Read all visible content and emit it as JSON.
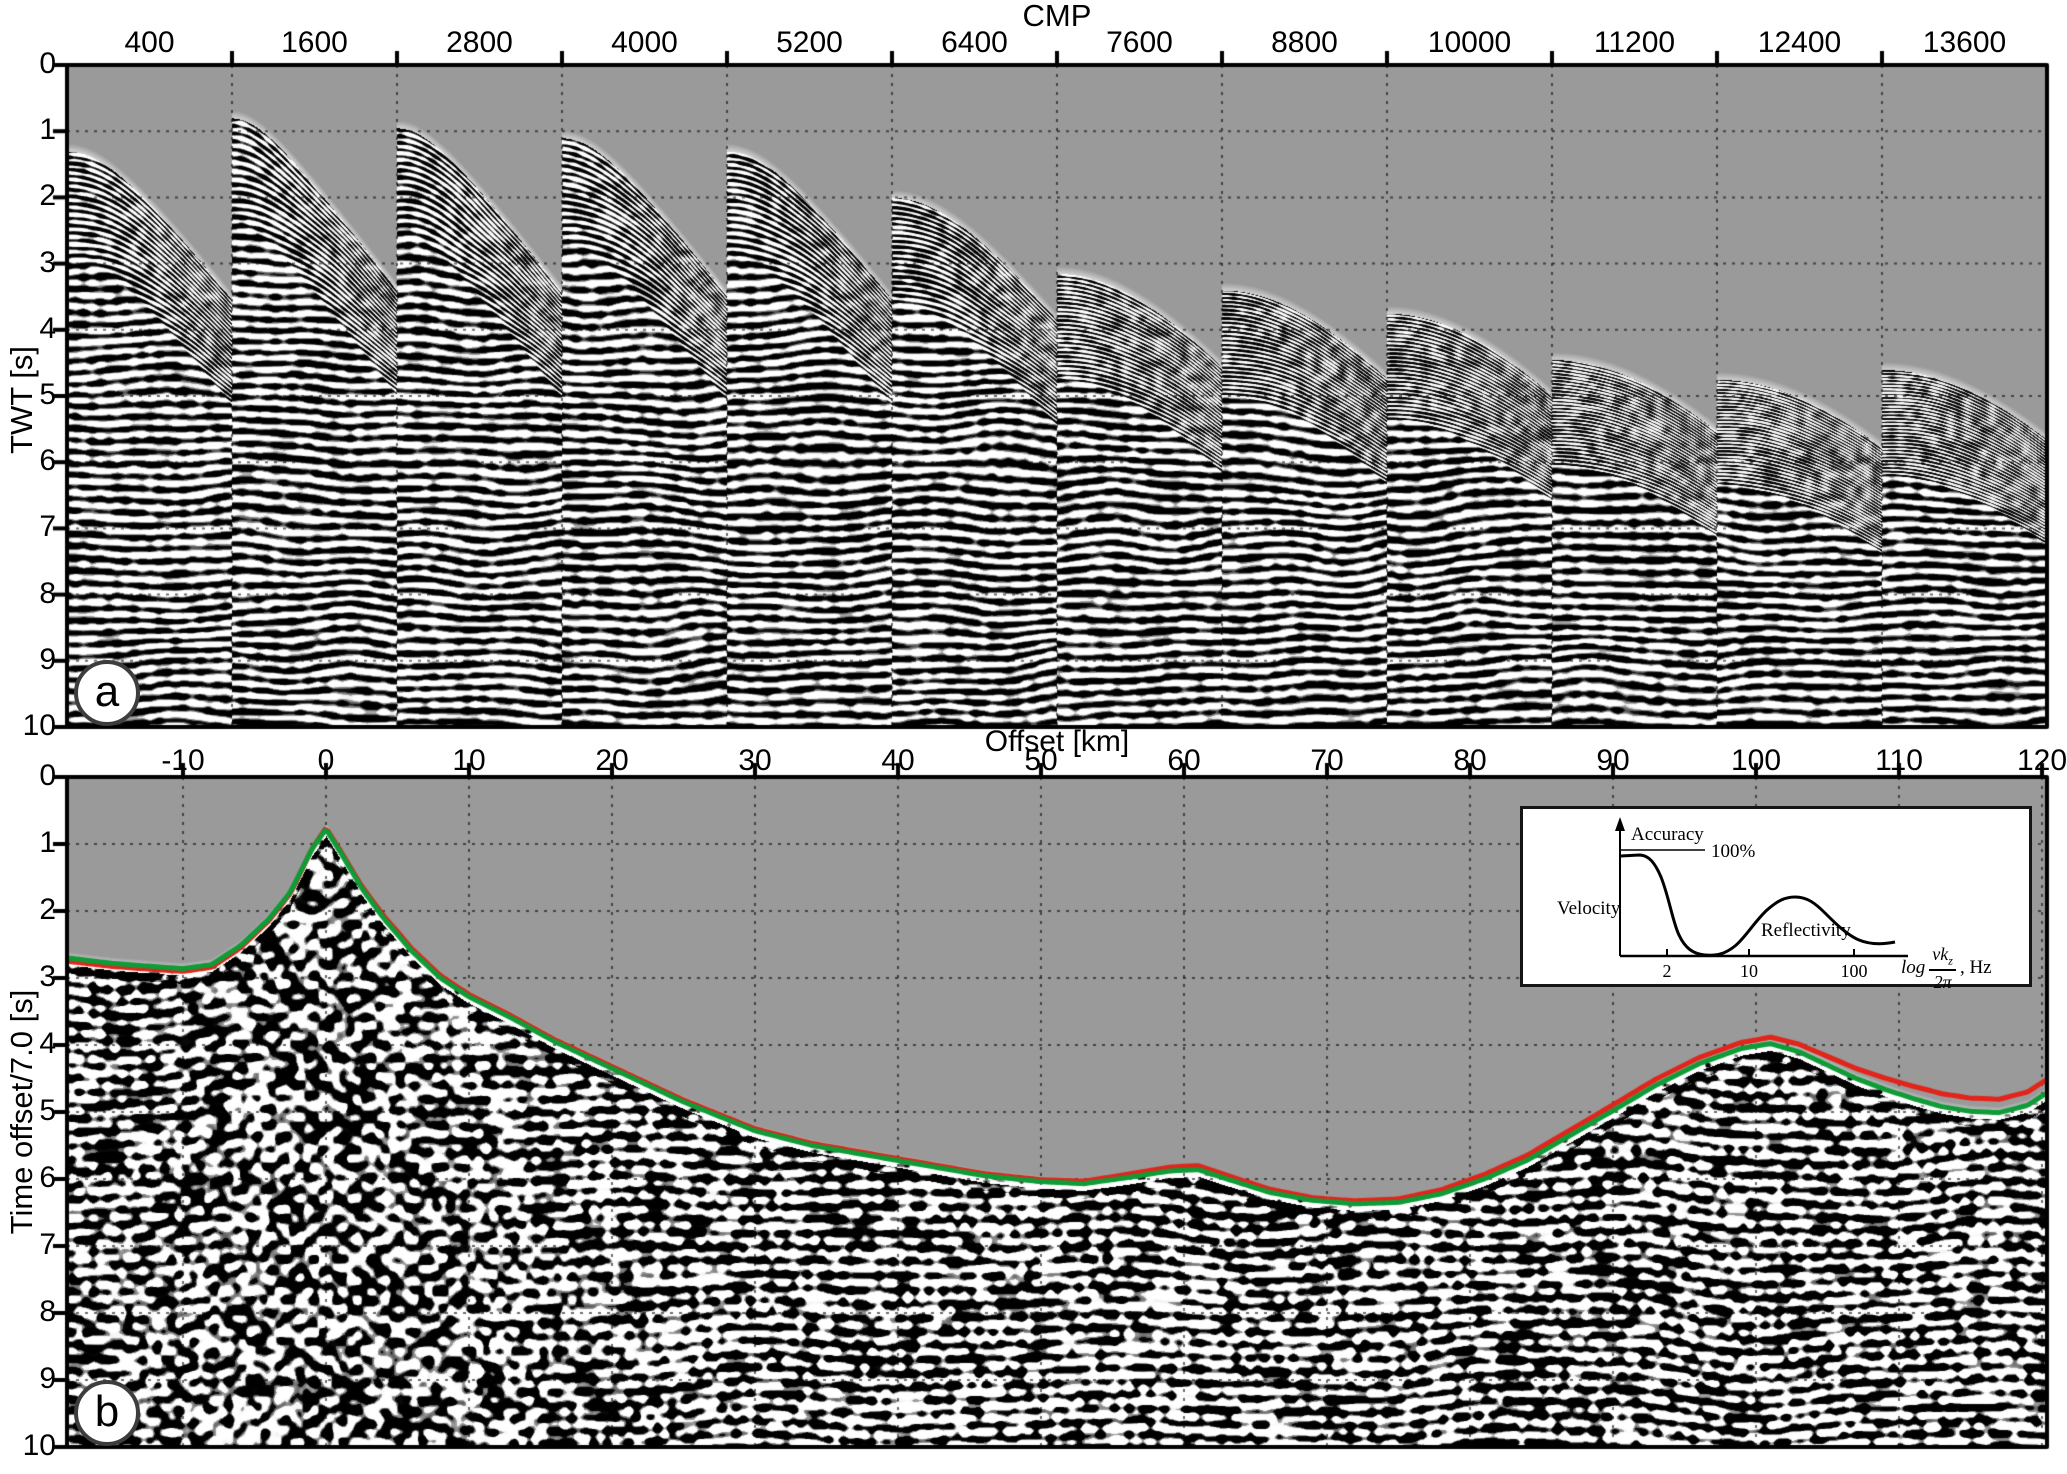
{
  "colors": {
    "no_data_gray": "#9a9a9a",
    "horizon_red": "#e1251b",
    "horizon_green": "#0f9b37",
    "ink": "#000000"
  },
  "chart_data": [
    {
      "id": "a",
      "type": "heatmap",
      "subtype": "seismic-cmp-supergathers",
      "panel_tag": "a",
      "x_axis": {
        "title": "CMP",
        "ticks": [
          400,
          1600,
          2800,
          4000,
          5200,
          6400,
          7600,
          8800,
          10000,
          11200,
          12400,
          13600
        ],
        "n_panels": 12
      },
      "y_axis": {
        "title": "TWT [s]",
        "ticks": [
          0,
          1,
          2,
          3,
          4,
          5,
          6,
          7,
          8,
          9,
          10
        ],
        "range": [
          0,
          10
        ]
      },
      "grid": "dotted 1 s horizontal, dotted vertical at gather boundaries",
      "gather_onset_times_s": [
        1.3,
        0.8,
        0.95,
        1.1,
        1.3,
        2.0,
        3.15,
        3.4,
        3.75,
        4.45,
        4.75,
        4.6
      ],
      "moveout_coeff": 3.3
    },
    {
      "id": "b",
      "type": "heatmap",
      "subtype": "migrated-seismic-section",
      "panel_tag": "b",
      "x_axis": {
        "title": "Offset [km]",
        "ticks": [
          -10,
          0,
          10,
          20,
          30,
          40,
          50,
          60,
          70,
          80,
          90,
          100,
          110,
          120
        ],
        "range": [
          -18.1,
          120.3
        ]
      },
      "y_axis": {
        "title": "Time offset/7.0  [s]",
        "ticks": [
          0,
          1,
          2,
          3,
          4,
          5,
          6,
          7,
          8,
          9,
          10
        ],
        "range": [
          0,
          10
        ]
      },
      "grid": "dotted 1 s horizontal, dotted 10 km vertical",
      "horizons": [
        {
          "name": "red-pick",
          "color": "#e1251b"
        },
        {
          "name": "green-pick",
          "color": "#0f9b37"
        }
      ],
      "seafloor_green_pick_km_s": [
        [
          -18.1,
          2.7
        ],
        [
          -15,
          2.78
        ],
        [
          -12,
          2.83
        ],
        [
          -10,
          2.86
        ],
        [
          -8,
          2.8
        ],
        [
          -6,
          2.52
        ],
        [
          -4,
          2.12
        ],
        [
          -2.5,
          1.72
        ],
        [
          -1,
          1.08
        ],
        [
          0,
          0.78
        ],
        [
          1,
          1.12
        ],
        [
          2.5,
          1.66
        ],
        [
          4,
          2.1
        ],
        [
          6,
          2.6
        ],
        [
          8,
          3.0
        ],
        [
          10,
          3.28
        ],
        [
          13,
          3.6
        ],
        [
          16,
          3.95
        ],
        [
          20,
          4.35
        ],
        [
          25,
          4.85
        ],
        [
          30,
          5.28
        ],
        [
          34,
          5.5
        ],
        [
          38,
          5.65
        ],
        [
          42,
          5.8
        ],
        [
          46,
          5.95
        ],
        [
          50,
          6.04
        ],
        [
          53,
          6.07
        ],
        [
          56,
          5.98
        ],
        [
          59,
          5.88
        ],
        [
          61,
          5.86
        ],
        [
          63,
          6.0
        ],
        [
          66,
          6.2
        ],
        [
          69,
          6.32
        ],
        [
          72,
          6.37
        ],
        [
          75,
          6.35
        ],
        [
          78,
          6.22
        ],
        [
          81,
          6.0
        ],
        [
          84,
          5.72
        ],
        [
          87,
          5.35
        ],
        [
          90,
          4.98
        ],
        [
          93,
          4.6
        ],
        [
          96,
          4.28
        ],
        [
          99,
          4.05
        ],
        [
          101,
          3.98
        ],
        [
          103,
          4.1
        ],
        [
          105,
          4.3
        ],
        [
          107,
          4.5
        ],
        [
          109,
          4.66
        ],
        [
          111,
          4.8
        ],
        [
          113,
          4.92
        ],
        [
          115,
          4.99
        ],
        [
          117,
          5.01
        ],
        [
          119,
          4.9
        ],
        [
          120.3,
          4.72
        ]
      ],
      "red_minus_green_s": [
        [
          -18.1,
          0.05
        ],
        [
          -8,
          0.04
        ],
        [
          -2,
          0.02
        ],
        [
          0,
          -0.02
        ],
        [
          5,
          -0.04
        ],
        [
          15,
          -0.03
        ],
        [
          50,
          -0.03
        ],
        [
          60,
          -0.06
        ],
        [
          70,
          -0.04
        ],
        [
          82,
          -0.07
        ],
        [
          92,
          -0.09
        ],
        [
          100,
          -0.09
        ],
        [
          104,
          -0.12
        ],
        [
          108,
          -0.16
        ],
        [
          112,
          -0.19
        ],
        [
          116,
          -0.2
        ],
        [
          120.3,
          -0.2
        ]
      ],
      "inset": {
        "y_arrow_label": "Accuracy",
        "level_label": "100%",
        "left_label": "Velocity",
        "curve_label": "Reflectivity",
        "xticks": [
          "2",
          "10",
          "100"
        ],
        "xlabel_log": "log",
        "frac_num": "vk",
        "frac_num_sub": "z",
        "frac_den": "2π",
        "xlabel_unit": ",  Hz"
      }
    }
  ]
}
